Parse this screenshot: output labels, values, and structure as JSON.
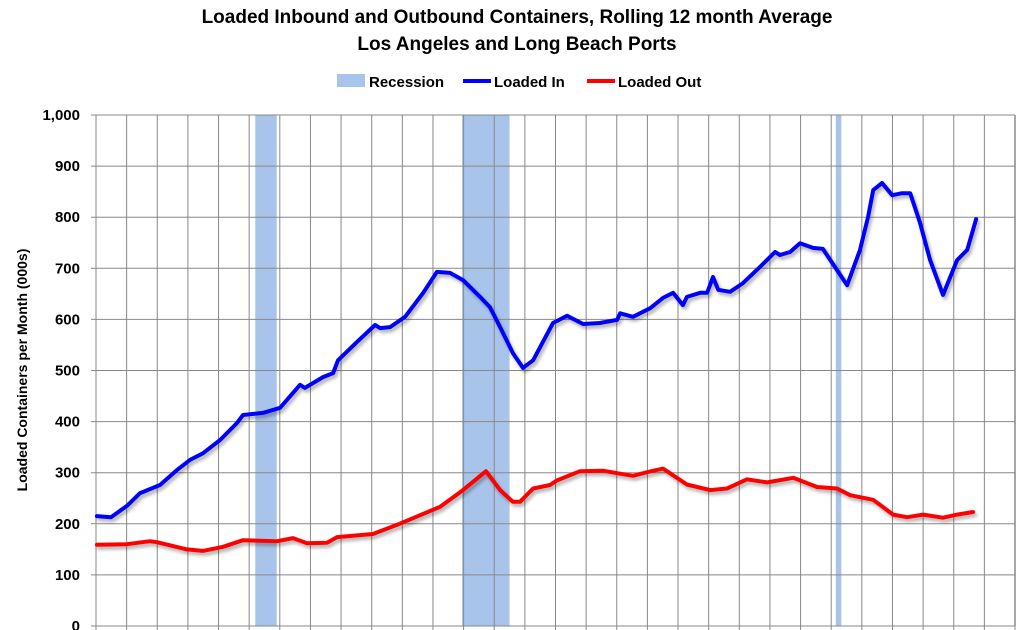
{
  "chart_data": {
    "type": "line",
    "title": "Loaded Inbound and Outbound Containers, Rolling 12 month Average",
    "subtitle": "Los Angeles and Long Beach Ports",
    "xlabel": "",
    "ylabel": "Loaded Containers per Month (000s)",
    "xlim": [
      1996,
      2026
    ],
    "ylim": [
      0,
      1000
    ],
    "yticks": [
      0,
      100,
      200,
      300,
      400,
      500,
      600,
      700,
      800,
      900,
      1000
    ],
    "ytick_labels": [
      "0",
      "100",
      "200",
      "300",
      "400",
      "500",
      "600",
      "700",
      "800",
      "900",
      "1,000"
    ],
    "grid": true,
    "legend_position": "top",
    "recession": {
      "name": "Recession",
      "color": "#A9C4EA",
      "periods": [
        [
          2001.2,
          2001.9
        ],
        [
          2007.95,
          2009.5
        ],
        [
          2020.15,
          2020.33
        ]
      ]
    },
    "series": [
      {
        "name": "Loaded In",
        "color": "#0000FF",
        "x": [
          1996.03,
          1996.49,
          1997.01,
          1997.44,
          1998.09,
          1998.64,
          1999.07,
          1999.49,
          2000.05,
          2000.6,
          2000.8,
          2001.45,
          2002.01,
          2002.66,
          2002.82,
          2003.41,
          2003.74,
          2003.9,
          2004.52,
          2005.11,
          2005.27,
          2005.6,
          2006.09,
          2006.68,
          2007.13,
          2007.56,
          2007.98,
          2008.54,
          2008.86,
          2009.19,
          2009.61,
          2009.94,
          2010.27,
          2010.92,
          2011.38,
          2011.9,
          2012.45,
          2013.01,
          2013.11,
          2013.53,
          2014.09,
          2014.51,
          2014.84,
          2015.16,
          2015.29,
          2015.72,
          2015.95,
          2016.14,
          2016.31,
          2016.7,
          2017.12,
          2017.68,
          2018.17,
          2018.33,
          2018.66,
          2018.98,
          2019.41,
          2019.73,
          2020.52,
          2020.94,
          2021.2,
          2021.37,
          2021.66,
          2021.99,
          2022.31,
          2022.58,
          2022.9,
          2023.23,
          2023.65,
          2024.11,
          2024.44,
          2024.6,
          2024.73
        ],
        "y": [
          215,
          213,
          235,
          260,
          276,
          305,
          325,
          338,
          364,
          397,
          413,
          417,
          427,
          472,
          466,
          487,
          495,
          520,
          556,
          589,
          583,
          585,
          605,
          652,
          693,
          691,
          677,
          644,
          624,
          585,
          534,
          505,
          520,
          593,
          607,
          591,
          593,
          599,
          612,
          605,
          622,
          642,
          652,
          628,
          644,
          652,
          652,
          683,
          658,
          654,
          671,
          703,
          732,
          726,
          732,
          749,
          740,
          738,
          667,
          736,
          800,
          853,
          867,
          843,
          847,
          847,
          789,
          716,
          648,
          716,
          736,
          769,
          796
        ]
      },
      {
        "name": "Loaded Out",
        "color": "#FF0000",
        "x": [
          1996.03,
          1997.01,
          1997.76,
          1997.99,
          1998.97,
          1999.49,
          2000.15,
          2000.8,
          2001.91,
          2002.43,
          2002.89,
          2003.54,
          2003.87,
          2005.04,
          2005.83,
          2007.23,
          2007.98,
          2008.73,
          2009.19,
          2009.61,
          2009.84,
          2010.27,
          2010.82,
          2011.05,
          2011.8,
          2012.55,
          2013.11,
          2013.53,
          2013.99,
          2014.51,
          2015.29,
          2016.05,
          2016.6,
          2017.25,
          2017.91,
          2018.76,
          2019.54,
          2020.19,
          2020.62,
          2021.37,
          2022.02,
          2022.48,
          2023.0,
          2023.65,
          2024.11,
          2024.63
        ],
        "y": [
          159,
          160,
          166,
          164,
          150,
          147,
          155,
          168,
          166,
          172,
          162,
          163,
          174,
          180,
          198,
          233,
          266,
          303,
          266,
          243,
          243,
          269,
          276,
          285,
          303,
          304,
          298,
          294,
          301,
          308,
          277,
          266,
          269,
          287,
          281,
          290,
          272,
          269,
          256,
          247,
          218,
          213,
          218,
          212,
          218,
          223
        ]
      }
    ]
  }
}
